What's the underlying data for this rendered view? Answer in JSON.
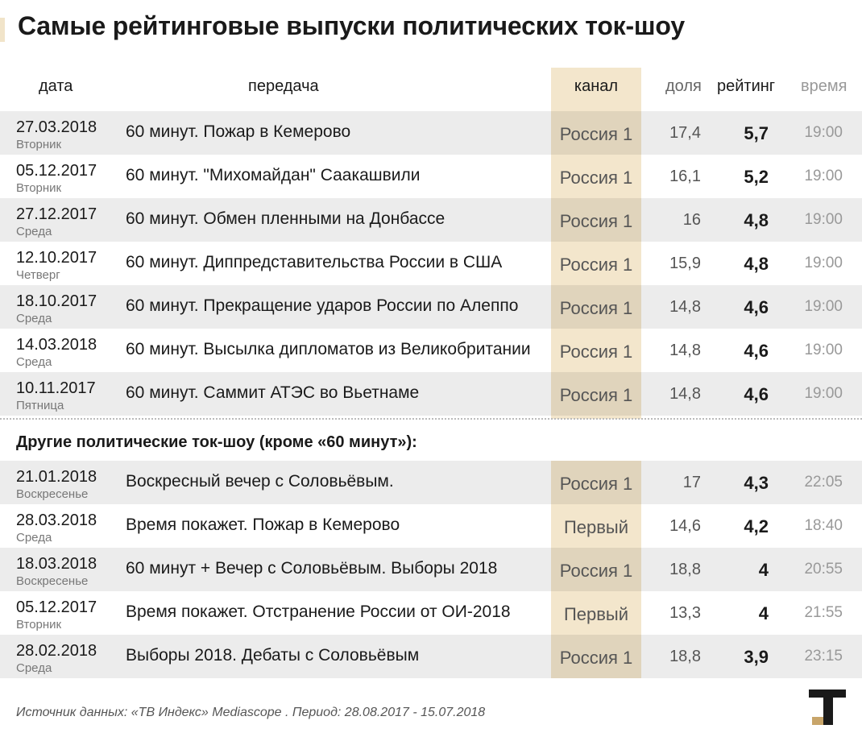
{
  "title": "Самые рейтинговые выпуски политических ток-шоу",
  "columns": {
    "date": "дата",
    "show": "передача",
    "channel": "канал",
    "share": "доля",
    "rating": "рейтинг",
    "time": "время"
  },
  "section_other": "Другие политические ток-шоу (кроме «60 минут»):",
  "footer": "Источник данных: «ТВ Индекс» Mediascope . Период: 28.08.2017 - 15.07.2018",
  "colors": {
    "channel_band": "#f3e6cc",
    "row_stripe": "#ececec",
    "logo_accent": "#c8a56a"
  },
  "chart_data": {
    "type": "table",
    "title": "Самые рейтинговые выпуски политических ток-шоу",
    "top_rows": [
      {
        "date": "27.03.2018",
        "day": "Вторник",
        "show": "60 минут. Пожар в Кемерово",
        "channel": "Россия 1",
        "share": "17,4",
        "rating": "5,7",
        "time": "19:00"
      },
      {
        "date": "05.12.2017",
        "day": "Вторник",
        "show": "60 минут. \"Михомайдан\" Саакашвили",
        "channel": "Россия 1",
        "share": "16,1",
        "rating": "5,2",
        "time": "19:00"
      },
      {
        "date": "27.12.2017",
        "day": "Среда",
        "show": "60 минут. Обмен пленными на Донбассе",
        "channel": "Россия 1",
        "share": "16",
        "rating": "4,8",
        "time": "19:00"
      },
      {
        "date": "12.10.2017",
        "day": "Четверг",
        "show": "60 минут. Диппредставительства России в США",
        "channel": "Россия 1",
        "share": "15,9",
        "rating": "4,8",
        "time": "19:00"
      },
      {
        "date": "18.10.2017",
        "day": "Среда",
        "show": "60 минут. Прекращение ударов России по Алеппо",
        "channel": "Россия 1",
        "share": "14,8",
        "rating": "4,6",
        "time": "19:00"
      },
      {
        "date": "14.03.2018",
        "day": "Среда",
        "show": "60 минут. Высылка дипломатов из Великобритании",
        "channel": "Россия 1",
        "share": "14,8",
        "rating": "4,6",
        "time": "19:00"
      },
      {
        "date": "10.11.2017",
        "day": "Пятница",
        "show": "60 минут. Саммит АТЭС во Вьетнаме",
        "channel": "Россия 1",
        "share": "14,8",
        "rating": "4,6",
        "time": "19:00"
      }
    ],
    "other_rows": [
      {
        "date": "21.01.2018",
        "day": "Воскресенье",
        "show": "Воскресный вечер с Соловьёвым.",
        "channel": "Россия 1",
        "share": "17",
        "rating": "4,3",
        "time": "22:05"
      },
      {
        "date": "28.03.2018",
        "day": "Среда",
        "show": "Время покажет. Пожар в Кемерово",
        "channel": "Первый",
        "share": "14,6",
        "rating": "4,2",
        "time": "18:40"
      },
      {
        "date": "18.03.2018",
        "day": "Воскресенье",
        "show": "60 минут + Вечер с Соловьёвым. Выборы 2018",
        "channel": "Россия 1",
        "share": "18,8",
        "rating": "4",
        "time": "20:55"
      },
      {
        "date": "05.12.2017",
        "day": "Вторник",
        "show": "Время покажет. Отстранение России от ОИ-2018",
        "channel": "Первый",
        "share": "13,3",
        "rating": "4",
        "time": "21:55"
      },
      {
        "date": "28.02.2018",
        "day": "Среда",
        "show": "Выборы 2018. Дебаты с Соловьёвым",
        "channel": "Россия 1",
        "share": "18,8",
        "rating": "3,9",
        "time": "23:15"
      }
    ]
  }
}
